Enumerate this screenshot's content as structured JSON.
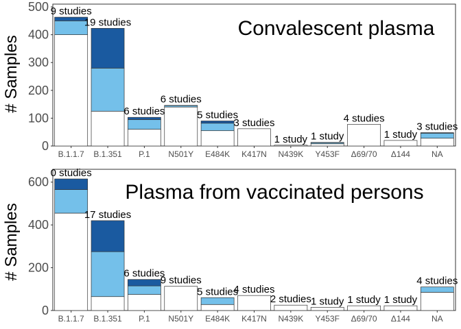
{
  "chart_data": [
    {
      "type": "bar",
      "stacked": true,
      "title": "Convalescent plasma",
      "ylabel": "# Samples",
      "xlabel": "",
      "ylim": [
        0,
        510
      ],
      "yticks": [
        0,
        100,
        200,
        300,
        400,
        500
      ],
      "grid": false,
      "legend": "none",
      "categories": [
        "B.1.1.7",
        "B.1.351",
        "P.1",
        "N501Y",
        "E484K",
        "K417N",
        "N439K",
        "Y453F",
        "Δ69/70",
        "Δ144",
        "NA"
      ],
      "series": [
        {
          "values": [
            400,
            125,
            60,
            140,
            55,
            62,
            3,
            8,
            78,
            20,
            28
          ],
          "color": "#ffffff"
        },
        {
          "values": [
            50,
            155,
            35,
            5,
            27,
            0,
            0,
            4,
            0,
            0,
            18
          ],
          "color": "#74c0ea"
        },
        {
          "values": [
            13,
            143,
            8,
            1,
            8,
            0,
            0,
            1,
            0,
            0,
            2
          ],
          "color": "#1a5aa0"
        }
      ],
      "annotations": [
        "9 studies",
        "19 studies",
        "6 studies",
        "6 studies",
        "5 studies",
        "3 studies",
        "1 study",
        "1 study",
        "4 studies",
        "1 study",
        "3 studies"
      ]
    },
    {
      "type": "bar",
      "stacked": true,
      "title": "Plasma from vaccinated persons",
      "ylabel": "# Samples",
      "xlabel": "",
      "ylim": [
        0,
        660
      ],
      "yticks": [
        0,
        200,
        400,
        600
      ],
      "grid": false,
      "legend": "none",
      "categories": [
        "B.1.1.7",
        "B.1.351",
        "P.1",
        "N501Y",
        "E484K",
        "K417N",
        "N439K",
        "Y453F",
        "Δ69/70",
        "Δ144",
        "NA"
      ],
      "series": [
        {
          "values": [
            455,
            65,
            75,
            113,
            28,
            70,
            25,
            15,
            22,
            22,
            85
          ],
          "color": "#ffffff"
        },
        {
          "values": [
            110,
            210,
            40,
            0,
            32,
            0,
            0,
            0,
            0,
            0,
            25
          ],
          "color": "#74c0ea"
        },
        {
          "values": [
            50,
            145,
            30,
            0,
            0,
            0,
            0,
            0,
            0,
            0,
            0
          ],
          "color": "#1a5aa0"
        }
      ],
      "annotations": [
        "0 studies",
        "17 studies",
        "6 studies",
        "9 studies",
        "5 studies",
        "4 studies",
        "2 studies",
        "1 study",
        "1 study",
        "1 study",
        "4 studies"
      ]
    }
  ]
}
